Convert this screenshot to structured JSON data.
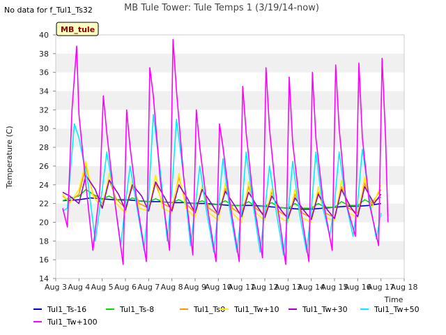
{
  "chart_data": {
    "type": "line",
    "title": "MB Tule Tower: Tule Temps 1 (3/19/14-now)",
    "note": "No data for f_Tul1_Ts32",
    "site_label": "MB_tule",
    "xlabel": "Time",
    "ylabel": "Temperature (C)",
    "xlim": [
      3,
      18
    ],
    "ylim": [
      14,
      40
    ],
    "x_ticks": [
      {
        "value": 3,
        "label": "Aug 3"
      },
      {
        "value": 4,
        "label": "Aug 4"
      },
      {
        "value": 5,
        "label": "Aug 5"
      },
      {
        "value": 6,
        "label": "Aug 6"
      },
      {
        "value": 7,
        "label": "Aug 7"
      },
      {
        "value": 8,
        "label": "Aug 8"
      },
      {
        "value": 9,
        "label": "Aug 9"
      },
      {
        "value": 10,
        "label": "Aug 10"
      },
      {
        "value": 11,
        "label": "Aug 11"
      },
      {
        "value": 12,
        "label": "Aug 12"
      },
      {
        "value": 13,
        "label": "Aug 13"
      },
      {
        "value": 14,
        "label": "Aug 14"
      },
      {
        "value": 15,
        "label": "Aug 15"
      },
      {
        "value": 16,
        "label": "Aug 16"
      },
      {
        "value": 17,
        "label": "Aug 17"
      },
      {
        "value": 18,
        "label": "Aug 18"
      }
    ],
    "y_ticks": [
      14,
      16,
      18,
      20,
      22,
      24,
      26,
      28,
      30,
      32,
      34,
      36,
      38,
      40
    ],
    "grid": "horizontal-bands",
    "legend_position": "bottom",
    "series": [
      {
        "name": "Tul1_Ts-16",
        "color": "#0000cc",
        "x": [
          3.3,
          4,
          4.5,
          5,
          5.5,
          6,
          6.5,
          7,
          7.5,
          8,
          8.5,
          9,
          9.5,
          10,
          10.5,
          11,
          11.5,
          12,
          12.5,
          13,
          13.5,
          14,
          14.5,
          15,
          15.5,
          16,
          16.5,
          17
        ],
        "y": [
          22.3,
          22.4,
          22.6,
          22.5,
          22.4,
          22.4,
          22.3,
          22.2,
          22.2,
          22.1,
          22.1,
          22.0,
          22.0,
          21.9,
          21.8,
          21.8,
          21.8,
          21.7,
          21.6,
          21.5,
          21.4,
          21.4,
          21.5,
          21.6,
          21.7,
          21.7,
          21.8,
          22.0
        ]
      },
      {
        "name": "Tul1_Ts-8",
        "color": "#00dd00",
        "x": [
          3.3,
          3.5,
          4,
          4.3,
          4.6,
          5,
          5.3,
          5.6,
          6,
          6.3,
          6.6,
          7,
          7.3,
          7.6,
          8,
          8.3,
          8.6,
          9,
          9.3,
          9.6,
          10,
          10.3,
          10.6,
          11,
          11.3,
          11.6,
          12,
          12.3,
          12.6,
          13,
          13.3,
          13.6,
          14,
          14.3,
          14.6,
          15,
          15.3,
          15.6,
          16,
          16.3,
          16.6,
          17
        ],
        "y": [
          22.3,
          22.5,
          22.8,
          23.5,
          23.0,
          22.5,
          22.8,
          22.4,
          22.3,
          22.6,
          22.3,
          22.2,
          22.5,
          22.2,
          22.1,
          22.4,
          22.0,
          22.0,
          22.3,
          21.9,
          21.9,
          22.3,
          21.8,
          21.8,
          22.2,
          21.7,
          21.7,
          22.1,
          21.6,
          21.5,
          22.0,
          21.5,
          21.5,
          22.0,
          21.6,
          21.6,
          22.2,
          21.8,
          21.8,
          22.4,
          22.0,
          22.7
        ]
      },
      {
        "name": "Tul1_Ts0",
        "color": "#ff9900",
        "x": [
          3.3,
          3.6,
          4,
          4.3,
          4.6,
          5,
          5.3,
          5.6,
          6,
          6.3,
          6.6,
          7,
          7.3,
          7.6,
          8,
          8.3,
          8.6,
          9,
          9.3,
          9.6,
          10,
          10.3,
          10.6,
          11,
          11.3,
          11.6,
          12,
          12.3,
          12.6,
          13,
          13.3,
          13.6,
          14,
          14.3,
          14.6,
          15,
          15.3,
          15.6,
          16,
          16.3,
          16.6,
          17
        ],
        "y": [
          22.8,
          22.2,
          23.0,
          26.0,
          23.0,
          22.0,
          24.5,
          22.5,
          21.5,
          23.8,
          22.0,
          21.5,
          24.2,
          22.0,
          21.5,
          24.8,
          22.0,
          21.0,
          23.5,
          21.5,
          20.8,
          23.6,
          21.5,
          20.8,
          23.8,
          21.5,
          20.8,
          23.2,
          21.2,
          20.5,
          23.0,
          21.0,
          20.5,
          23.2,
          21.0,
          20.5,
          23.8,
          21.5,
          21.0,
          24.2,
          22.0,
          23.5
        ]
      },
      {
        "name": "Tul1_Tw+10",
        "color": "#ffee00",
        "x": [
          3.3,
          3.6,
          4,
          4.3,
          4.6,
          5,
          5.3,
          5.6,
          6,
          6.3,
          6.6,
          7,
          7.3,
          7.6,
          8,
          8.3,
          8.6,
          9,
          9.3,
          9.6,
          10,
          10.3,
          10.6,
          11,
          11.3,
          11.6,
          12,
          12.3,
          12.6,
          13,
          13.3,
          13.6,
          14,
          14.3,
          14.6,
          15,
          15.3,
          15.6,
          16,
          16.3,
          16.6,
          17
        ],
        "y": [
          23.0,
          22.0,
          23.5,
          26.5,
          22.8,
          21.5,
          25.2,
          22.0,
          21.0,
          24.5,
          21.5,
          21.2,
          25.0,
          21.5,
          21.0,
          25.2,
          21.5,
          20.5,
          24.0,
          21.0,
          20.2,
          24.2,
          21.0,
          20.0,
          24.3,
          21.0,
          20.2,
          23.6,
          20.6,
          20.0,
          23.5,
          20.5,
          20.0,
          23.8,
          20.5,
          20.2,
          24.5,
          21.0,
          20.5,
          24.8,
          21.5,
          24.0
        ]
      },
      {
        "name": "Tul1_Tw+30",
        "color": "#9900cc",
        "x": [
          3.3,
          3.6,
          4,
          4.3,
          4.7,
          5,
          5.3,
          5.7,
          6,
          6.3,
          6.7,
          7,
          7.3,
          7.7,
          8,
          8.3,
          8.7,
          9,
          9.3,
          9.7,
          10,
          10.3,
          10.7,
          11,
          11.3,
          11.7,
          12,
          12.3,
          12.7,
          13,
          13.3,
          13.7,
          14,
          14.3,
          14.7,
          15,
          15.3,
          15.7,
          16,
          16.3,
          16.7,
          17
        ],
        "y": [
          23.2,
          22.8,
          22.0,
          25.0,
          23.5,
          21.5,
          24.5,
          23.0,
          21.3,
          24.0,
          22.8,
          21.2,
          24.3,
          22.6,
          21.2,
          24.0,
          22.4,
          21.0,
          23.5,
          22.0,
          20.8,
          23.3,
          21.8,
          20.6,
          23.2,
          21.6,
          20.5,
          22.8,
          21.3,
          20.4,
          22.6,
          21.2,
          20.3,
          23.0,
          21.3,
          20.4,
          23.5,
          21.6,
          20.6,
          23.8,
          22.0,
          23.0
        ]
      },
      {
        "name": "Tul1_Tw+50",
        "color": "#00eeff",
        "x": [
          3.3,
          3.5,
          3.8,
          4,
          4.4,
          4.7,
          5,
          5.2,
          5.5,
          5.8,
          6,
          6.2,
          6.5,
          6.8,
          7,
          7.2,
          7.5,
          7.8,
          8,
          8.2,
          8.5,
          8.8,
          9,
          9.2,
          9.5,
          9.8,
          10,
          10.2,
          10.5,
          10.8,
          11,
          11.2,
          11.5,
          11.8,
          12,
          12.2,
          12.5,
          12.8,
          13,
          13.2,
          13.5,
          13.8,
          14,
          14.2,
          14.5,
          14.8,
          15,
          15.2,
          15.5,
          15.8,
          16,
          16.2,
          16.5,
          16.8,
          17
        ],
        "y": [
          21.2,
          21.5,
          30.5,
          29.0,
          24.0,
          18.0,
          23.5,
          27.5,
          23.0,
          17.5,
          22.0,
          26.0,
          21.5,
          17.0,
          22.5,
          31.5,
          25.5,
          18.0,
          23.5,
          31.0,
          25.0,
          17.5,
          21.5,
          26.0,
          21.0,
          16.8,
          21.5,
          26.8,
          21.2,
          16.8,
          21.3,
          27.5,
          21.8,
          16.8,
          21.2,
          26.0,
          21.0,
          16.5,
          21.0,
          26.5,
          20.8,
          16.8,
          21.3,
          27.5,
          21.5,
          18.5,
          22.0,
          27.5,
          22.0,
          18.5,
          22.2,
          27.8,
          22.5,
          18.2,
          21.0
        ]
      },
      {
        "name": "Tul1_Tw+100",
        "color": "#ff00ff",
        "x": [
          3.3,
          3.5,
          3.7,
          3.9,
          4.0,
          4.3,
          4.6,
          4.9,
          5.05,
          5.2,
          5.5,
          5.9,
          6.05,
          6.2,
          6.5,
          6.9,
          7.05,
          7.2,
          7.5,
          7.9,
          8.05,
          8.2,
          8.5,
          8.9,
          9.05,
          9.2,
          9.5,
          9.9,
          10.05,
          10.2,
          10.5,
          10.9,
          11.05,
          11.2,
          11.5,
          11.9,
          12.05,
          12.2,
          12.5,
          12.9,
          13.05,
          13.2,
          13.5,
          13.9,
          14.05,
          14.2,
          14.5,
          14.9,
          15.05,
          15.2,
          15.5,
          15.9,
          16.05,
          16.2,
          16.5,
          16.9,
          17.05,
          17.2,
          17.3
        ],
        "y": [
          21.5,
          19.5,
          32.0,
          38.8,
          31.5,
          24.0,
          17.0,
          23.5,
          33.5,
          29.5,
          23.0,
          15.5,
          32.0,
          28.0,
          22.0,
          15.8,
          36.5,
          33.5,
          24.5,
          17.0,
          39.5,
          34.0,
          25.0,
          16.5,
          32.0,
          28.0,
          22.0,
          15.8,
          30.5,
          28.0,
          22.0,
          15.8,
          34.5,
          29.5,
          22.5,
          16.2,
          36.5,
          30.0,
          22.5,
          15.5,
          35.5,
          28.5,
          22.0,
          15.8,
          36.0,
          29.0,
          22.5,
          17.0,
          36.8,
          30.0,
          22.0,
          18.5,
          37.0,
          29.0,
          22.0,
          17.5,
          37.5,
          29.0,
          20.0
        ]
      }
    ]
  }
}
